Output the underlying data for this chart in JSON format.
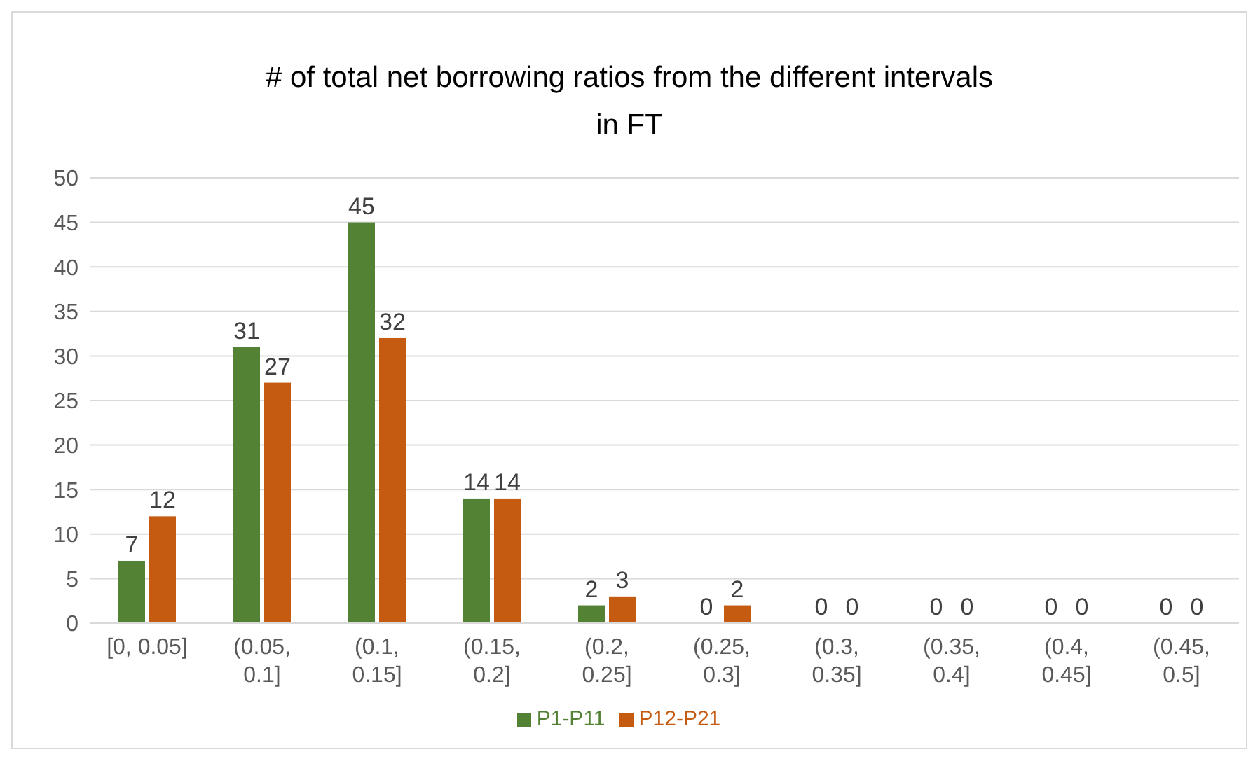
{
  "chart_data": {
    "type": "bar",
    "title": "# of total net borrowing ratios from the different intervals in FT",
    "categories": [
      "[0, 0.05]",
      "(0.05, 0.1]",
      "(0.1, 0.15]",
      "(0.15, 0.2]",
      "(0.2, 0.25]",
      "(0.25, 0.3]",
      "(0.3, 0.35]",
      "(0.35, 0.4]",
      "(0.4, 0.45]",
      "(0.45, 0.5]"
    ],
    "series": [
      {
        "name": "P1-P11",
        "color": "#548235",
        "values": [
          7,
          31,
          45,
          14,
          2,
          0,
          0,
          0,
          0,
          0
        ]
      },
      {
        "name": "P12-P21",
        "color": "#c55a11",
        "values": [
          12,
          27,
          32,
          14,
          3,
          2,
          0,
          0,
          0,
          0
        ]
      }
    ],
    "ylim": [
      0,
      50
    ],
    "yticks": [
      0,
      5,
      10,
      15,
      20,
      25,
      30,
      35,
      40,
      45,
      50
    ],
    "grid": "y",
    "legend": "bottom",
    "data_labels": true
  }
}
